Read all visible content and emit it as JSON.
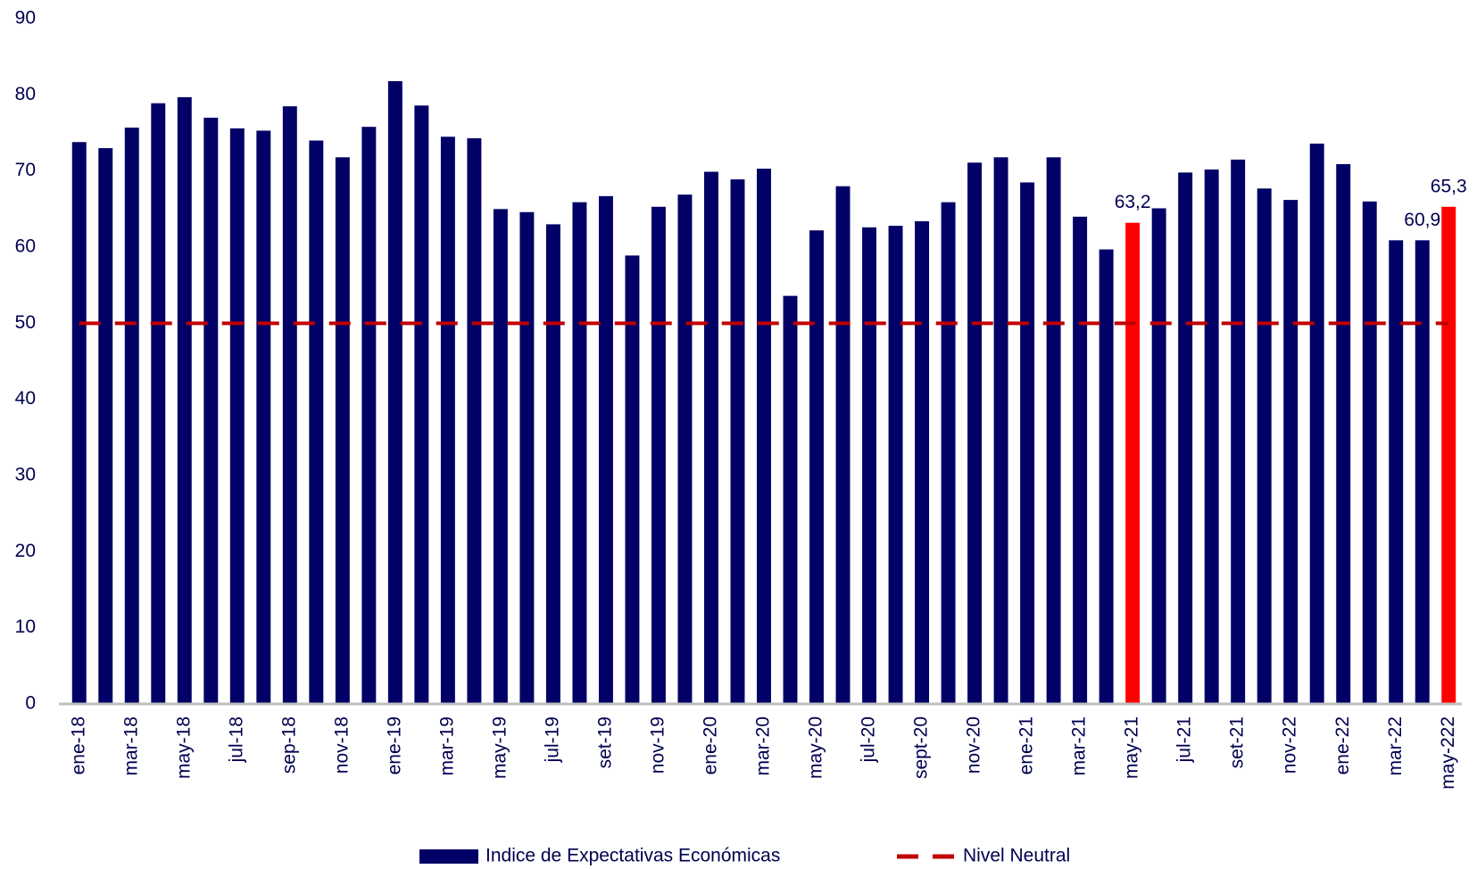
{
  "chart_data": {
    "type": "bar",
    "categories": [
      "ene-18",
      null,
      "mar-18",
      null,
      "may-18",
      null,
      "jul-18",
      null,
      "sep-18",
      null,
      "nov-18",
      null,
      "ene-19",
      null,
      "mar-19",
      null,
      "may-19",
      null,
      "jul-19",
      null,
      "set-19",
      null,
      "nov-19",
      null,
      "ene-20",
      null,
      "mar-20",
      null,
      "may-20",
      null,
      "jul-20",
      null,
      "sept-20",
      null,
      "nov-20",
      null,
      "ene-21",
      null,
      "mar-21",
      null,
      "may-21",
      null,
      "jul-21",
      null,
      "set-21",
      null,
      "nov-22",
      null,
      "ene-22",
      null,
      "mar-22",
      null,
      "may-222"
    ],
    "series": [
      {
        "name": "Indice de Expectativas Económicas",
        "color": "#000066",
        "values": [
          73.8,
          73.0,
          75.7,
          78.9,
          79.7,
          77.0,
          75.6,
          75.3,
          78.5,
          74.0,
          71.8,
          75.8,
          81.8,
          78.6,
          74.5,
          74.3,
          65.0,
          64.6,
          63.0,
          65.9,
          66.7,
          58.9,
          65.3,
          66.9,
          69.9,
          68.9,
          70.3,
          53.6,
          62.2,
          68.0,
          62.6,
          62.8,
          63.4,
          65.9,
          71.1,
          71.8,
          68.5,
          71.8,
          64.0,
          59.7,
          63.2,
          65.1,
          69.8,
          70.2,
          71.5,
          67.7,
          66.2,
          73.6,
          70.9,
          66.0,
          60.9,
          60.9,
          65.3
        ],
        "colors": [
          "#000066",
          "#000066",
          "#000066",
          "#000066",
          "#000066",
          "#000066",
          "#000066",
          "#000066",
          "#000066",
          "#000066",
          "#000066",
          "#000066",
          "#000066",
          "#000066",
          "#000066",
          "#000066",
          "#000066",
          "#000066",
          "#000066",
          "#000066",
          "#000066",
          "#000066",
          "#000066",
          "#000066",
          "#000066",
          "#000066",
          "#000066",
          "#000066",
          "#000066",
          "#000066",
          "#000066",
          "#000066",
          "#000066",
          "#000066",
          "#000066",
          "#000066",
          "#000066",
          "#000066",
          "#000066",
          "#000066",
          "#ff0000",
          "#000066",
          "#000066",
          "#000066",
          "#000066",
          "#000066",
          "#000066",
          "#000066",
          "#000066",
          "#000066",
          "#000066",
          "#000066",
          "#ff0000"
        ],
        "value_labels": [
          null,
          null,
          null,
          null,
          null,
          null,
          null,
          null,
          null,
          null,
          null,
          null,
          null,
          null,
          null,
          null,
          null,
          null,
          null,
          null,
          null,
          null,
          null,
          null,
          null,
          null,
          null,
          null,
          null,
          null,
          null,
          null,
          null,
          null,
          null,
          null,
          null,
          null,
          null,
          null,
          "63,2",
          null,
          null,
          null,
          null,
          null,
          null,
          null,
          null,
          null,
          null,
          "60,9",
          "65,3"
        ]
      },
      {
        "name": "Nivel Neutral",
        "color": "#c00000",
        "type": "line",
        "dashed": true,
        "values": [
          50,
          50,
          50,
          50,
          50,
          50,
          50,
          50,
          50,
          50,
          50,
          50,
          50,
          50,
          50,
          50,
          50,
          50,
          50,
          50,
          50,
          50,
          50,
          50,
          50,
          50,
          50,
          50,
          50,
          50,
          50,
          50,
          50,
          50,
          50,
          50,
          50,
          50,
          50,
          50,
          50,
          50,
          50,
          50,
          50,
          50,
          50,
          50,
          50,
          50,
          50,
          50,
          50
        ]
      }
    ],
    "ylim": [
      0,
      90
    ],
    "yticks": [
      0,
      10,
      20,
      30,
      40,
      50,
      60,
      70,
      80,
      90
    ],
    "grid": false
  }
}
